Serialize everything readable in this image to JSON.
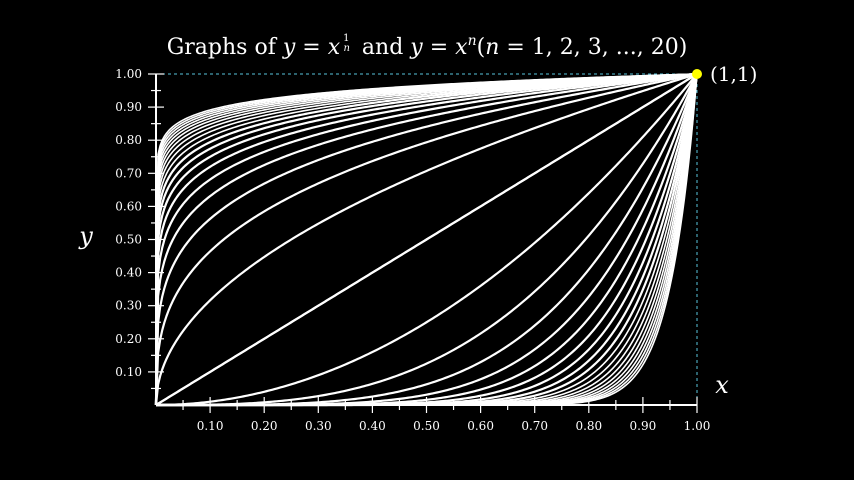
{
  "chart_data": {
    "type": "line",
    "title": {
      "prefix": "Graphs of ",
      "y1": "y",
      "eq1": " = ",
      "x1": "x",
      "exp_num": "1",
      "exp_den": "n",
      "mid": " and ",
      "y2": "y",
      "eq2": " = ",
      "x2": "x",
      "exp2": "n",
      "paren": "(",
      "n_var": "n",
      "rest": " = 1, 2, 3, ..., 20)"
    },
    "xlabel": "x",
    "ylabel": "y",
    "xlim": [
      0,
      1
    ],
    "ylim": [
      0,
      1
    ],
    "x_ticks": [
      "0.10",
      "0.20",
      "0.30",
      "0.40",
      "0.50",
      "0.60",
      "0.70",
      "0.80",
      "0.90",
      "1.00"
    ],
    "y_ticks": [
      "0.10",
      "0.20",
      "0.30",
      "0.40",
      "0.50",
      "0.60",
      "0.70",
      "0.80",
      "0.90",
      "1.00"
    ],
    "tick_step": 0.05,
    "n_min": 1,
    "n_max": 20,
    "series": [
      {
        "family": "x^(1/n)",
        "n": [
          1,
          2,
          3,
          4,
          5,
          6,
          7,
          8,
          9,
          10,
          11,
          12,
          13,
          14,
          15,
          16,
          17,
          18,
          19,
          20
        ]
      },
      {
        "family": "x^n",
        "n": [
          1,
          2,
          3,
          4,
          5,
          6,
          7,
          8,
          9,
          10,
          11,
          12,
          13,
          14,
          15,
          16,
          17,
          18,
          19,
          20
        ]
      }
    ],
    "highlight_point": {
      "x": 1,
      "y": 1,
      "label": "(1,1)"
    },
    "grid": false,
    "colors": {
      "background": "#000000",
      "curves": "#ffffff",
      "axes": "#ffffff",
      "guides": "#58c4dd",
      "point": "#ffff00"
    }
  }
}
